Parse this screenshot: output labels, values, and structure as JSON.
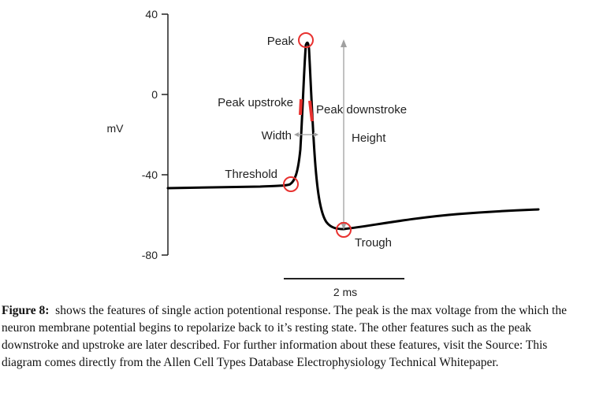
{
  "diagram": {
    "y_axis": {
      "label": "mV",
      "ticks": [
        "40",
        "0",
        "-40",
        "-80"
      ]
    },
    "annotations": {
      "peak": "Peak",
      "peak_upstroke": "Peak upstroke",
      "peak_downstroke": "Peak downstroke",
      "width": "Width",
      "height": "Height",
      "threshold": "Threshold",
      "trough": "Trough"
    },
    "scale_bar": "2 ms",
    "colors": {
      "trace": "#000000",
      "marker": "#e8312f",
      "arrow": "#a0a0a0"
    }
  },
  "caption": {
    "label": "Figure 8:",
    "text": "shows the features of single action potentional response. The peak is the max voltage from the which the neuron membrane potential begins to repolarize back to it’s resting state. The other features such as the peak downstroke and upstroke are later described. For further information about these features, visit the Source: This diagram comes directly from the Allen Cell Types Database Electrophysiology Technical Whitepaper."
  }
}
